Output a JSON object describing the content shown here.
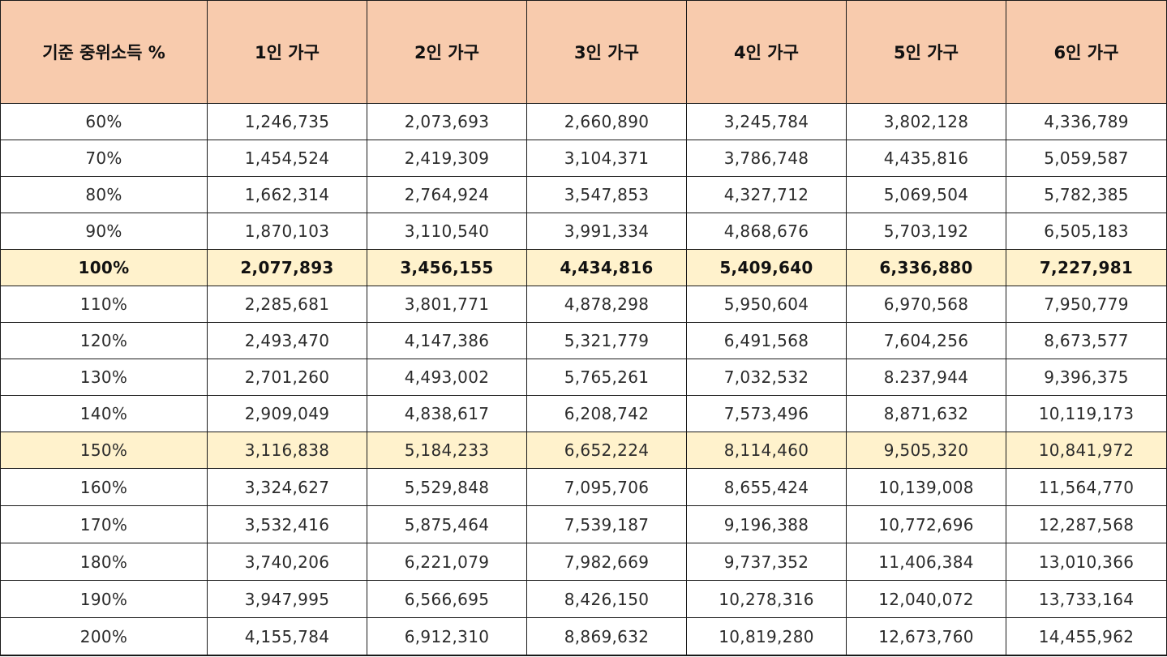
{
  "table": {
    "headers": [
      "기준 중위소득 %",
      "1인 가구",
      "2인 가구",
      "3인 가구",
      "4인 가구",
      "5인 가구",
      "6인 가구"
    ],
    "header_bg": "#f8cbad",
    "highlight_bg": "#fff2cc",
    "rows": [
      {
        "cells": [
          "60%",
          "1,246,735",
          "2,073,693",
          "2,660,890",
          "3,245,784",
          "3,802,128",
          "4,336,789"
        ],
        "highlight": false,
        "bold": false
      },
      {
        "cells": [
          "70%",
          "1,454,524",
          "2,419,309",
          "3,104,371",
          "3,786,748",
          "4,435,816",
          "5,059,587"
        ],
        "highlight": false,
        "bold": false
      },
      {
        "cells": [
          "80%",
          "1,662,314",
          "2,764,924",
          "3,547,853",
          "4,327,712",
          "5,069,504",
          "5,782,385"
        ],
        "highlight": false,
        "bold": false
      },
      {
        "cells": [
          "90%",
          "1,870,103",
          "3,110,540",
          "3,991,334",
          "4,868,676",
          "5,703,192",
          "6,505,183"
        ],
        "highlight": false,
        "bold": false
      },
      {
        "cells": [
          "100%",
          "2,077,893",
          "3,456,155",
          "4,434,816",
          "5,409,640",
          "6,336,880",
          "7,227,981"
        ],
        "highlight": true,
        "bold": true
      },
      {
        "cells": [
          "110%",
          "2,285,681",
          "3,801,771",
          "4,878,298",
          "5,950,604",
          "6,970,568",
          "7,950,779"
        ],
        "highlight": false,
        "bold": false
      },
      {
        "cells": [
          "120%",
          "2,493,470",
          "4,147,386",
          "5,321,779",
          "6,491,568",
          "7,604,256",
          "8,673,577"
        ],
        "highlight": false,
        "bold": false
      },
      {
        "cells": [
          "130%",
          "2,701,260",
          "4,493,002",
          "5,765,261",
          "7,032,532",
          "8.237,944",
          "9,396,375"
        ],
        "highlight": false,
        "bold": false
      },
      {
        "cells": [
          "140%",
          "2,909,049",
          "4,838,617",
          "6,208,742",
          "7,573,496",
          "8,871,632",
          "10,119,173"
        ],
        "highlight": false,
        "bold": false
      },
      {
        "cells": [
          "150%",
          "3,116,838",
          "5,184,233",
          "6,652,224",
          "8,114,460",
          "9,505,320",
          "10,841,972"
        ],
        "highlight": true,
        "bold": false
      },
      {
        "cells": [
          "160%",
          "3,324,627",
          "5,529,848",
          "7,095,706",
          "8,655,424",
          "10,139,008",
          "11,564,770"
        ],
        "highlight": false,
        "bold": false
      },
      {
        "cells": [
          "170%",
          "3,532,416",
          "5,875,464",
          "7,539,187",
          "9,196,388",
          "10,772,696",
          "12,287,568"
        ],
        "highlight": false,
        "bold": false
      },
      {
        "cells": [
          "180%",
          "3,740,206",
          "6,221,079",
          "7,982,669",
          "9,737,352",
          "11,406,384",
          "13,010,366"
        ],
        "highlight": false,
        "bold": false
      },
      {
        "cells": [
          "190%",
          "3,947,995",
          "6,566,695",
          "8,426,150",
          "10,278,316",
          "12,040,072",
          "13,733,164"
        ],
        "highlight": false,
        "bold": false
      },
      {
        "cells": [
          "200%",
          "4,155,784",
          "6,912,310",
          "8,869,632",
          "10,819,280",
          "12,673,760",
          "14,455,962"
        ],
        "highlight": false,
        "bold": false
      }
    ]
  }
}
